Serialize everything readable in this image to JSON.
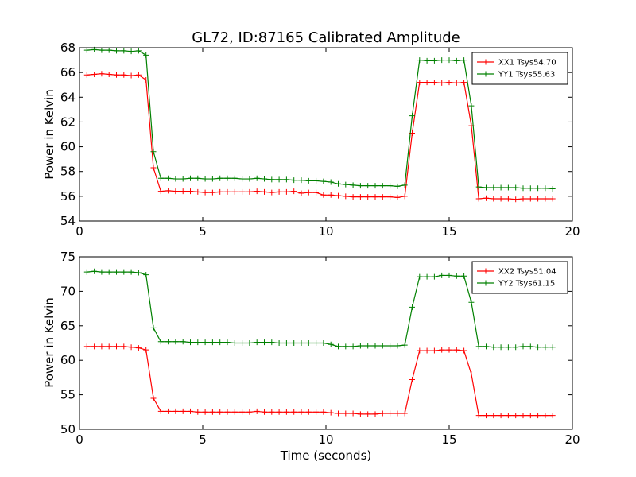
{
  "chart_data": [
    {
      "type": "line",
      "title": "GL72, ID:87165 Calibrated Amplitude",
      "xlabel": "",
      "ylabel": "Power in Kelvin",
      "xlim": [
        0,
        20
      ],
      "ylim": [
        54,
        68
      ],
      "xticks": [
        0,
        5,
        10,
        15,
        20
      ],
      "yticks": [
        54,
        56,
        58,
        60,
        62,
        64,
        66,
        68
      ],
      "grid": false,
      "legend_position": "top-right",
      "x": [
        0.3,
        0.6,
        0.9,
        1.2,
        1.5,
        1.8,
        2.1,
        2.4,
        2.7,
        3.0,
        3.3,
        3.6,
        3.9,
        4.2,
        4.5,
        4.8,
        5.1,
        5.4,
        5.7,
        6.0,
        6.3,
        6.6,
        6.9,
        7.2,
        7.5,
        7.8,
        8.1,
        8.4,
        8.7,
        9.0,
        9.3,
        9.6,
        9.9,
        10.2,
        10.5,
        10.8,
        11.1,
        11.4,
        11.7,
        12.0,
        12.3,
        12.6,
        12.9,
        13.2,
        13.5,
        13.8,
        14.1,
        14.4,
        14.7,
        15.0,
        15.3,
        15.6,
        15.9,
        16.2,
        16.5,
        16.8,
        17.1,
        17.4,
        17.7,
        18.0,
        18.3,
        18.6,
        18.9,
        19.2
      ],
      "series": [
        {
          "name": "XX1 Tsys54.70",
          "color": "#ff0000",
          "values": [
            65.8,
            65.85,
            65.9,
            65.85,
            65.8,
            65.8,
            65.75,
            65.8,
            65.4,
            58.3,
            56.4,
            56.45,
            56.4,
            56.4,
            56.4,
            56.35,
            56.3,
            56.3,
            56.35,
            56.35,
            56.35,
            56.35,
            56.35,
            56.4,
            56.35,
            56.3,
            56.35,
            56.35,
            56.4,
            56.25,
            56.3,
            56.3,
            56.1,
            56.1,
            56.05,
            56.0,
            55.95,
            55.95,
            55.95,
            55.95,
            55.95,
            55.95,
            55.9,
            56.0,
            61.1,
            65.2,
            65.2,
            65.2,
            65.15,
            65.2,
            65.15,
            65.2,
            61.7,
            55.8,
            55.85,
            55.8,
            55.8,
            55.8,
            55.75,
            55.8,
            55.8,
            55.8,
            55.8,
            55.8
          ]
        },
        {
          "name": "YY1 Tsys55.63",
          "color": "#008000",
          "values": [
            67.8,
            67.85,
            67.8,
            67.8,
            67.75,
            67.75,
            67.7,
            67.75,
            67.4,
            59.6,
            57.45,
            57.45,
            57.4,
            57.4,
            57.45,
            57.45,
            57.4,
            57.4,
            57.45,
            57.45,
            57.45,
            57.4,
            57.4,
            57.45,
            57.4,
            57.35,
            57.35,
            57.35,
            57.3,
            57.3,
            57.25,
            57.25,
            57.2,
            57.15,
            57.0,
            56.95,
            56.9,
            56.85,
            56.85,
            56.85,
            56.85,
            56.85,
            56.8,
            56.9,
            62.5,
            67.0,
            66.95,
            66.95,
            67.0,
            67.0,
            66.95,
            67.0,
            63.3,
            56.75,
            56.7,
            56.7,
            56.7,
            56.7,
            56.7,
            56.65,
            56.65,
            56.65,
            56.65,
            56.6
          ]
        }
      ]
    },
    {
      "type": "line",
      "title": "",
      "xlabel": "Time (seconds)",
      "ylabel": "Power in Kelvin",
      "xlim": [
        0,
        20
      ],
      "ylim": [
        50,
        75
      ],
      "xticks": [
        0,
        5,
        10,
        15,
        20
      ],
      "yticks": [
        50,
        55,
        60,
        65,
        70,
        75
      ],
      "grid": false,
      "legend_position": "top-right",
      "x": [
        0.3,
        0.6,
        0.9,
        1.2,
        1.5,
        1.8,
        2.1,
        2.4,
        2.7,
        3.0,
        3.3,
        3.6,
        3.9,
        4.2,
        4.5,
        4.8,
        5.1,
        5.4,
        5.7,
        6.0,
        6.3,
        6.6,
        6.9,
        7.2,
        7.5,
        7.8,
        8.1,
        8.4,
        8.7,
        9.0,
        9.3,
        9.6,
        9.9,
        10.2,
        10.5,
        10.8,
        11.1,
        11.4,
        11.7,
        12.0,
        12.3,
        12.6,
        12.9,
        13.2,
        13.5,
        13.8,
        14.1,
        14.4,
        14.7,
        15.0,
        15.3,
        15.6,
        15.9,
        16.2,
        16.5,
        16.8,
        17.1,
        17.4,
        17.7,
        18.0,
        18.3,
        18.6,
        18.9,
        19.2
      ],
      "series": [
        {
          "name": "XX2 Tsys51.04",
          "color": "#ff0000",
          "values": [
            62.0,
            62.0,
            62.0,
            62.0,
            62.0,
            62.0,
            61.9,
            61.8,
            61.5,
            54.5,
            52.6,
            52.6,
            52.6,
            52.6,
            52.6,
            52.5,
            52.5,
            52.5,
            52.5,
            52.5,
            52.5,
            52.5,
            52.5,
            52.6,
            52.5,
            52.5,
            52.5,
            52.5,
            52.5,
            52.5,
            52.5,
            52.5,
            52.5,
            52.4,
            52.3,
            52.3,
            52.3,
            52.2,
            52.2,
            52.2,
            52.3,
            52.3,
            52.3,
            52.3,
            57.2,
            61.4,
            61.4,
            61.4,
            61.5,
            61.5,
            61.5,
            61.4,
            58.0,
            52.0,
            52.0,
            52.0,
            52.0,
            52.0,
            52.0,
            52.0,
            52.0,
            52.0,
            52.0,
            52.0
          ]
        },
        {
          "name": "YY2 Tsys61.15",
          "color": "#008000",
          "values": [
            72.8,
            72.9,
            72.8,
            72.8,
            72.8,
            72.8,
            72.8,
            72.7,
            72.4,
            64.7,
            62.7,
            62.7,
            62.7,
            62.7,
            62.6,
            62.6,
            62.6,
            62.6,
            62.6,
            62.6,
            62.5,
            62.5,
            62.5,
            62.6,
            62.6,
            62.6,
            62.5,
            62.5,
            62.5,
            62.5,
            62.5,
            62.5,
            62.5,
            62.3,
            62.0,
            62.0,
            62.0,
            62.1,
            62.1,
            62.1,
            62.1,
            62.1,
            62.1,
            62.2,
            67.7,
            72.1,
            72.1,
            72.1,
            72.3,
            72.3,
            72.2,
            72.2,
            68.4,
            62.0,
            62.0,
            61.9,
            61.9,
            61.9,
            61.9,
            62.0,
            62.0,
            61.9,
            61.9,
            61.9
          ]
        }
      ]
    }
  ]
}
